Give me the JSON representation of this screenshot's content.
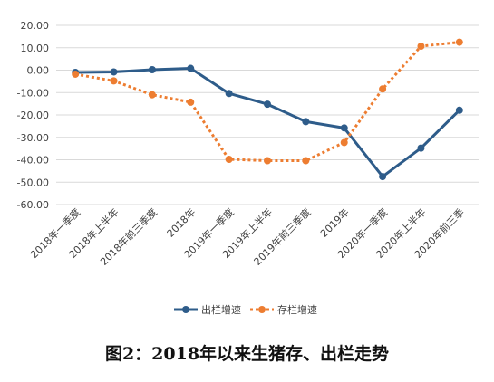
{
  "figure_caption": "图2：2018年以来生猪存、出栏走势",
  "chart_data": {
    "type": "line",
    "categories": [
      "2018年一季度",
      "2018年上半年",
      "2018年前三季度",
      "2018年",
      "2019年一季度",
      "2019年上半年",
      "2019年前三季度",
      "2019年",
      "2020年一季度",
      "2020年上半年",
      "2020年前三季"
    ],
    "series": [
      {
        "name": "出栏增速",
        "color": "#2E5C8A",
        "style": "solid",
        "values": [
          -1.0,
          -0.8,
          0.2,
          0.8,
          -10.4,
          -15.2,
          -23.0,
          -25.8,
          -47.5,
          -34.8,
          -17.9
        ]
      },
      {
        "name": "存栏增速",
        "color": "#ED7D31",
        "style": "dotted",
        "values": [
          -1.8,
          -4.8,
          -11.0,
          -14.3,
          -39.8,
          -40.4,
          -40.4,
          -32.3,
          -8.4,
          10.7,
          12.5
        ]
      }
    ],
    "y_ticks": [
      "20.00",
      "10.00",
      "0.00",
      "-10.00",
      "-20.00",
      "-30.00",
      "-40.00",
      "-50.00",
      "-60.00"
    ],
    "ylim": [
      -60,
      20
    ],
    "grid": true,
    "legend_position": "bottom"
  }
}
